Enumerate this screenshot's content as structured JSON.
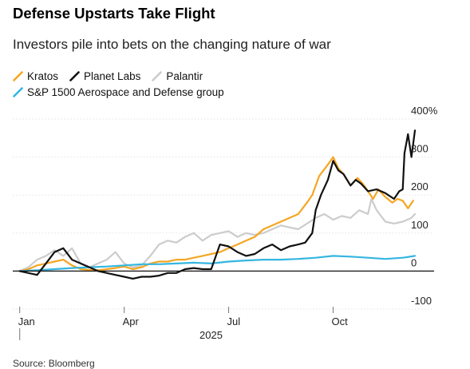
{
  "header": {
    "title": "Defense Upstarts Take Flight",
    "subtitle": "Investors pile into bets on the changing nature of war"
  },
  "footer": {
    "source": "Source: Bloomberg"
  },
  "chart_data": {
    "type": "line",
    "title": "Defense Upstarts Take Flight",
    "subtitle": "Investors pile into bets on the changing nature of war",
    "xlabel": "",
    "ylabel": "",
    "ylim": [
      -100,
      400
    ],
    "yticks": [
      {
        "value": 400,
        "label": "400%"
      },
      {
        "value": 300,
        "label": "300"
      },
      {
        "value": 200,
        "label": "200"
      },
      {
        "value": 100,
        "label": "100"
      },
      {
        "value": 0,
        "label": "0"
      },
      {
        "value": -100,
        "label": "-100"
      }
    ],
    "xticks": [
      {
        "value": 0,
        "label": "Jan"
      },
      {
        "value": 3,
        "label": "Apr"
      },
      {
        "value": 6,
        "label": "Jul"
      },
      {
        "value": 9,
        "label": "Oct"
      }
    ],
    "year_label": "2025",
    "grid": true,
    "legend": "top",
    "series": [
      {
        "name": "Kratos",
        "color": "#f5a623",
        "points": [
          [
            0,
            0
          ],
          [
            0.25,
            5
          ],
          [
            0.5,
            15
          ],
          [
            0.75,
            20
          ],
          [
            1,
            25
          ],
          [
            1.25,
            30
          ],
          [
            1.5,
            15
          ],
          [
            1.75,
            5
          ],
          [
            2,
            3
          ],
          [
            2.25,
            2
          ],
          [
            2.5,
            5
          ],
          [
            2.75,
            8
          ],
          [
            3,
            12
          ],
          [
            3.25,
            5
          ],
          [
            3.5,
            10
          ],
          [
            3.75,
            20
          ],
          [
            4,
            25
          ],
          [
            4.25,
            25
          ],
          [
            4.5,
            30
          ],
          [
            4.75,
            30
          ],
          [
            5,
            35
          ],
          [
            5.25,
            40
          ],
          [
            5.5,
            45
          ],
          [
            5.75,
            50
          ],
          [
            6,
            60
          ],
          [
            6.25,
            70
          ],
          [
            6.5,
            80
          ],
          [
            6.75,
            90
          ],
          [
            7,
            110
          ],
          [
            7.25,
            120
          ],
          [
            7.5,
            130
          ],
          [
            7.75,
            140
          ],
          [
            8,
            150
          ],
          [
            8.25,
            180
          ],
          [
            8.4,
            200
          ],
          [
            8.6,
            250
          ],
          [
            8.85,
            280
          ],
          [
            9,
            300
          ],
          [
            9.15,
            270
          ],
          [
            9.3,
            255
          ],
          [
            9.5,
            225
          ],
          [
            9.7,
            245
          ],
          [
            9.85,
            230
          ],
          [
            10,
            210
          ],
          [
            10.15,
            190
          ],
          [
            10.3,
            215
          ],
          [
            10.5,
            195
          ],
          [
            10.7,
            180
          ],
          [
            10.85,
            190
          ],
          [
            11,
            185
          ],
          [
            11.15,
            165
          ],
          [
            11.3,
            185
          ]
        ]
      },
      {
        "name": "Planet Labs",
        "color": "#111111",
        "points": [
          [
            0,
            0
          ],
          [
            0.25,
            -5
          ],
          [
            0.5,
            -10
          ],
          [
            0.75,
            20
          ],
          [
            1,
            50
          ],
          [
            1.25,
            60
          ],
          [
            1.5,
            30
          ],
          [
            1.75,
            20
          ],
          [
            2,
            10
          ],
          [
            2.25,
            0
          ],
          [
            2.5,
            -5
          ],
          [
            2.75,
            -10
          ],
          [
            3,
            -15
          ],
          [
            3.25,
            -20
          ],
          [
            3.5,
            -15
          ],
          [
            3.75,
            -15
          ],
          [
            4,
            -12
          ],
          [
            4.25,
            -5
          ],
          [
            4.5,
            -5
          ],
          [
            4.75,
            5
          ],
          [
            5,
            8
          ],
          [
            5.25,
            5
          ],
          [
            5.5,
            5
          ],
          [
            5.75,
            70
          ],
          [
            6,
            65
          ],
          [
            6.25,
            50
          ],
          [
            6.5,
            40
          ],
          [
            6.75,
            45
          ],
          [
            7,
            60
          ],
          [
            7.25,
            70
          ],
          [
            7.5,
            55
          ],
          [
            7.75,
            65
          ],
          [
            8,
            70
          ],
          [
            8.2,
            75
          ],
          [
            8.4,
            100
          ],
          [
            8.5,
            160
          ],
          [
            8.65,
            200
          ],
          [
            8.85,
            240
          ],
          [
            9,
            290
          ],
          [
            9.15,
            265
          ],
          [
            9.3,
            255
          ],
          [
            9.5,
            225
          ],
          [
            9.65,
            240
          ],
          [
            9.8,
            230
          ],
          [
            10,
            210
          ],
          [
            10.25,
            215
          ],
          [
            10.5,
            205
          ],
          [
            10.75,
            190
          ],
          [
            10.9,
            210
          ],
          [
            11,
            215
          ],
          [
            11.05,
            310
          ],
          [
            11.15,
            360
          ],
          [
            11.25,
            300
          ],
          [
            11.35,
            370
          ]
        ]
      },
      {
        "name": "Palantir",
        "color": "#cccccc",
        "points": [
          [
            0,
            0
          ],
          [
            0.25,
            10
          ],
          [
            0.5,
            30
          ],
          [
            0.75,
            40
          ],
          [
            1,
            55
          ],
          [
            1.25,
            40
          ],
          [
            1.5,
            60
          ],
          [
            1.75,
            20
          ],
          [
            2,
            10
          ],
          [
            2.25,
            20
          ],
          [
            2.5,
            30
          ],
          [
            2.75,
            50
          ],
          [
            3,
            20
          ],
          [
            3.25,
            10
          ],
          [
            3.5,
            15
          ],
          [
            3.75,
            40
          ],
          [
            4,
            70
          ],
          [
            4.25,
            80
          ],
          [
            4.5,
            75
          ],
          [
            4.75,
            90
          ],
          [
            5,
            100
          ],
          [
            5.25,
            80
          ],
          [
            5.5,
            95
          ],
          [
            5.75,
            100
          ],
          [
            6,
            105
          ],
          [
            6.25,
            90
          ],
          [
            6.5,
            100
          ],
          [
            6.75,
            95
          ],
          [
            7,
            100
          ],
          [
            7.25,
            110
          ],
          [
            7.5,
            120
          ],
          [
            7.75,
            115
          ],
          [
            8,
            110
          ],
          [
            8.25,
            125
          ],
          [
            8.5,
            140
          ],
          [
            8.75,
            150
          ],
          [
            9,
            135
          ],
          [
            9.25,
            145
          ],
          [
            9.5,
            140
          ],
          [
            9.75,
            160
          ],
          [
            10,
            150
          ],
          [
            10.1,
            190
          ],
          [
            10.25,
            160
          ],
          [
            10.5,
            130
          ],
          [
            10.75,
            125
          ],
          [
            11,
            130
          ],
          [
            11.25,
            140
          ],
          [
            11.35,
            150
          ]
        ]
      },
      {
        "name": "S&P 1500 Aerospace and Defense group",
        "color": "#34b6e0",
        "points": [
          [
            0,
            0
          ],
          [
            0.5,
            2
          ],
          [
            1,
            5
          ],
          [
            1.5,
            8
          ],
          [
            2,
            10
          ],
          [
            2.5,
            12
          ],
          [
            3,
            15
          ],
          [
            3.5,
            18
          ],
          [
            4,
            18
          ],
          [
            4.5,
            20
          ],
          [
            5,
            22
          ],
          [
            5.5,
            20
          ],
          [
            6,
            25
          ],
          [
            6.5,
            28
          ],
          [
            7,
            30
          ],
          [
            7.5,
            30
          ],
          [
            8,
            32
          ],
          [
            8.5,
            35
          ],
          [
            9,
            40
          ],
          [
            9.5,
            38
          ],
          [
            10,
            35
          ],
          [
            10.5,
            32
          ],
          [
            11,
            35
          ],
          [
            11.35,
            40
          ]
        ]
      }
    ]
  }
}
